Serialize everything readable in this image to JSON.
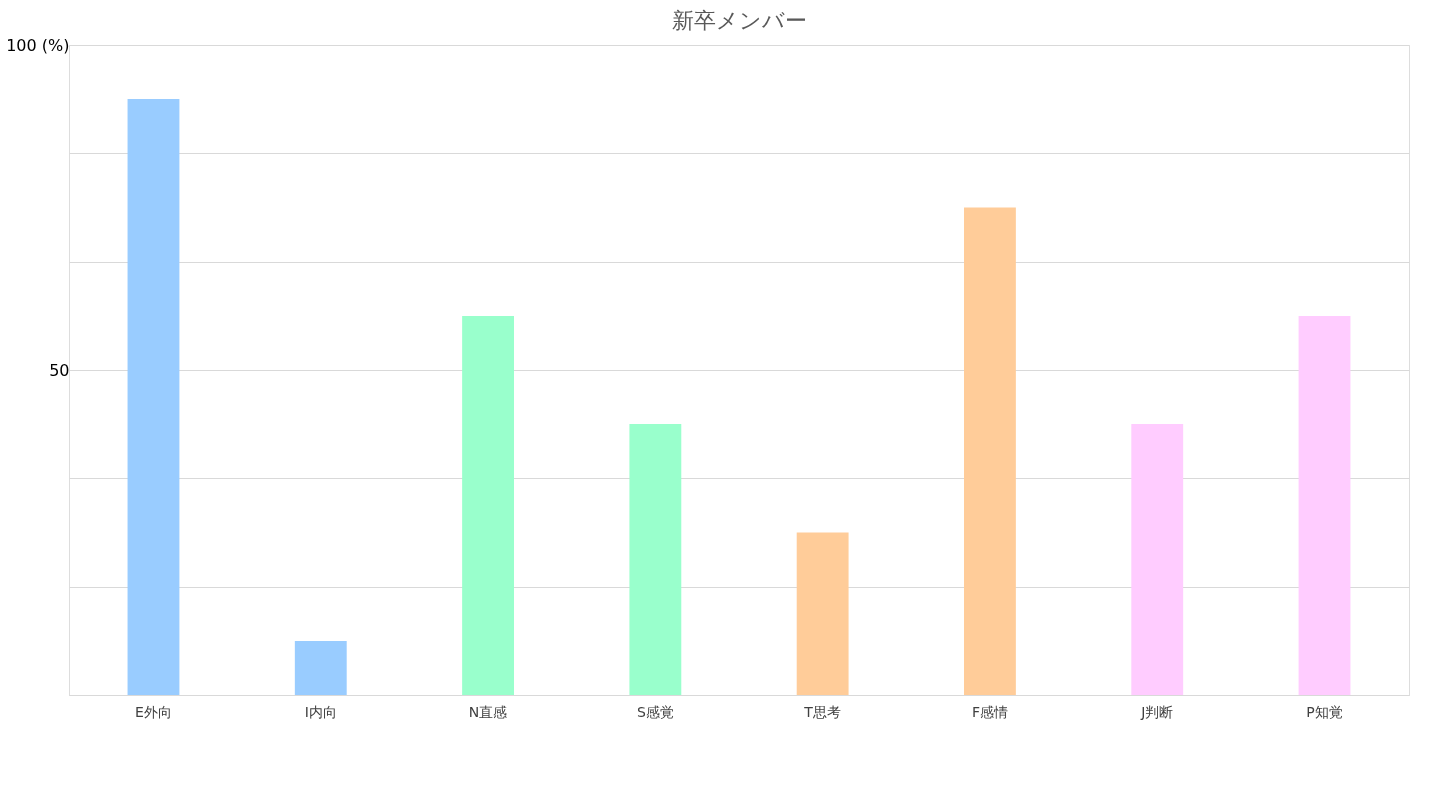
{
  "chart_data": {
    "type": "bar",
    "title": "新卒メンバー",
    "categories": [
      "E外向",
      "I内向",
      "N直感",
      "S感覚",
      "T思考",
      "F感情",
      "J判断",
      "P知覚"
    ],
    "values": [
      91.7,
      8.3,
      58.3,
      41.7,
      25,
      75,
      41.7,
      58.3
    ],
    "colors": [
      "#99ccff",
      "#99ccff",
      "#99ffcc",
      "#99ffcc",
      "#ffcc99",
      "#ffcc99",
      "#ffccff",
      "#ffccff"
    ],
    "ylim": [
      0,
      100
    ],
    "yticks": [
      {
        "value": 0,
        "label": null
      },
      {
        "value": 16.67,
        "label": null
      },
      {
        "value": 33.33,
        "label": null
      },
      50,
      {
        "value": 66.67,
        "label": null
      },
      {
        "value": 83.33,
        "label": null
      },
      {
        "value": 100,
        "label": "100 (%)"
      }
    ],
    "grid": "y"
  }
}
